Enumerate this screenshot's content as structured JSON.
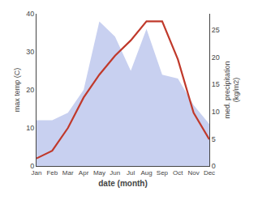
{
  "chart_data": {
    "type": "line",
    "categories": [
      "Jan",
      "Feb",
      "Mar",
      "Apr",
      "May",
      "Jun",
      "Jul",
      "Aug",
      "Sep",
      "Oct",
      "Nov",
      "Dec"
    ],
    "series": [
      {
        "type": "area",
        "axis": "y2",
        "color": "#c8d0f0",
        "values": [
          8.4,
          8.4,
          9.8,
          14,
          26.6,
          23.8,
          17.5,
          25.2,
          16.8,
          16.1,
          11.2,
          7.7
        ]
      },
      {
        "type": "line",
        "color": "#c0392b",
        "values": [
          2,
          4,
          10,
          18,
          24,
          29,
          33,
          38,
          38,
          28,
          14,
          7
        ]
      }
    ],
    "xlabel": "date (month)",
    "ylabel": "max temp (C)",
    "y2label": "med. precipitation\n(kg/m2)",
    "ylim": [
      0,
      40
    ],
    "yticks": [
      0,
      10,
      20,
      30,
      40
    ],
    "y2lim": [
      0,
      28
    ],
    "y2ticks": [
      0,
      5,
      10,
      15,
      20,
      25
    ],
    "grid": false
  }
}
